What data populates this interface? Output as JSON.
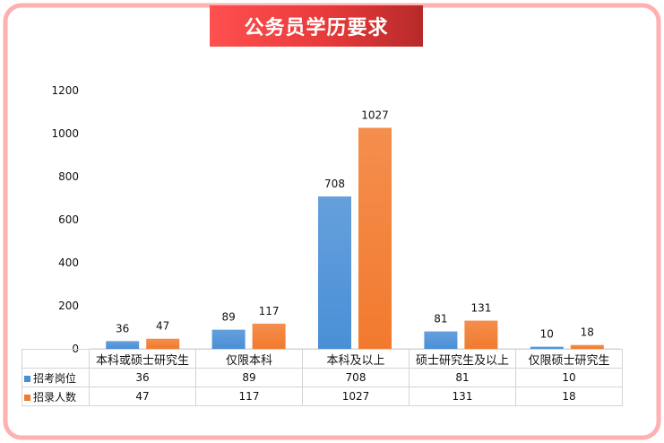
{
  "title": "公务员学历要求",
  "colors": {
    "series_1": "#4a8fd6",
    "series_2": "#f27a2e",
    "banner": "#e83a3a",
    "frame": "#ffb0b0"
  },
  "chart_data": {
    "type": "bar",
    "title": "公务员学历要求",
    "categories": [
      "本科或硕士研究生",
      "仅限本科",
      "本科及以上",
      "硕士研究生及以上",
      "仅限硕士研究生"
    ],
    "series": [
      {
        "name": "招考岗位",
        "values": [
          36,
          89,
          708,
          81,
          10
        ]
      },
      {
        "name": "招录人数",
        "values": [
          47,
          117,
          1027,
          131,
          18
        ]
      }
    ],
    "ylim": [
      0,
      1200
    ],
    "yticks": [
      0,
      200,
      400,
      600,
      800,
      1000,
      1200
    ],
    "xlabel": "",
    "ylabel": "",
    "grid": false,
    "data_labels": true,
    "legend": "data-table"
  }
}
